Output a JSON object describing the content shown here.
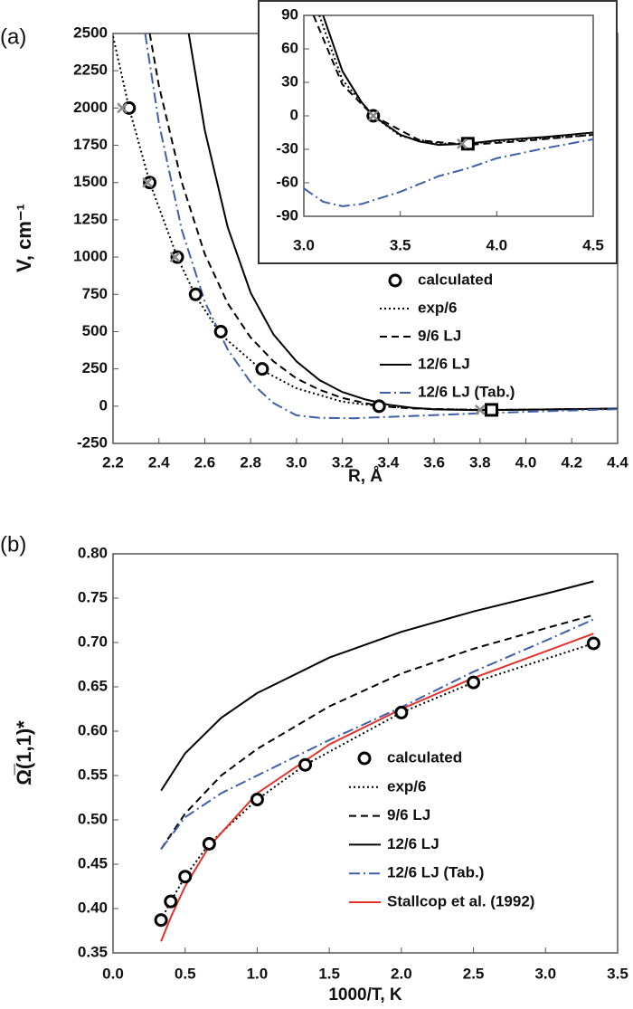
{
  "chart_data": [
    {
      "type": "line",
      "panel_label": "(a)",
      "xlabel": "R, Å",
      "ylabel": "V, cm⁻¹",
      "legend": "right",
      "xlim": [
        2.2,
        4.4
      ],
      "ylim": [
        -250,
        2500
      ],
      "xticks": [
        2.2,
        2.4,
        2.6,
        2.8,
        {
          "value": 3,
          "label": "3.0"
        },
        3.2,
        3.4,
        3.6,
        3.8,
        {
          "value": 4,
          "label": "4.0"
        },
        4.2,
        4.4
      ],
      "yticks": [
        -250,
        0,
        250,
        500,
        750,
        1000,
        1250,
        1500,
        1750,
        2000,
        2250,
        2500
      ],
      "series": [
        {
          "name": "calculated",
          "style": "markers",
          "marker": "circle",
          "color": "#000000",
          "x": [
            2.27,
            2.36,
            2.48,
            2.56,
            2.67,
            2.85,
            3.36
          ],
          "values": [
            2000,
            1500,
            1000,
            750,
            500,
            250,
            0
          ]
        },
        {
          "name": "exp/6",
          "style": "dotted",
          "color": "#000000",
          "x": [
            2.2,
            2.27,
            2.36,
            2.48,
            2.56,
            2.67,
            2.85,
            3.0,
            3.2,
            3.36,
            3.6,
            3.85,
            4.1,
            4.4
          ],
          "values": [
            2480,
            2000,
            1500,
            1000,
            740,
            480,
            240,
            120,
            30,
            0,
            -20,
            -25,
            -22,
            -17
          ]
        },
        {
          "name": "9/6 LJ",
          "style": "dashed",
          "color": "#000000",
          "x": [
            2.36,
            2.4,
            2.5,
            2.6,
            2.7,
            2.8,
            2.9,
            3.0,
            3.1,
            3.2,
            3.36,
            3.5,
            3.8,
            4.1,
            4.4
          ],
          "values": [
            2500,
            2150,
            1500,
            1020,
            690,
            460,
            300,
            185,
            110,
            55,
            0,
            -15,
            -26,
            -22,
            -17
          ]
        },
        {
          "name": "12/6 LJ",
          "style": "solid",
          "color": "#000000",
          "x": [
            2.53,
            2.6,
            2.7,
            2.8,
            2.9,
            3.0,
            3.1,
            3.2,
            3.3,
            3.4,
            3.5,
            3.6,
            3.8,
            4.0,
            4.2,
            4.4
          ],
          "values": [
            2500,
            1850,
            1200,
            760,
            480,
            300,
            175,
            95,
            45,
            10,
            -10,
            -22,
            -27,
            -24,
            -20,
            -16
          ]
        },
        {
          "name": "12/6 LJ (Tab.)",
          "style": "dashdot",
          "color": "#3f5fa8",
          "x": [
            2.34,
            2.4,
            2.5,
            2.6,
            2.7,
            2.8,
            2.9,
            3.0,
            3.1,
            3.25,
            3.4,
            3.6,
            3.8,
            4.0,
            4.4
          ],
          "values": [
            2500,
            1900,
            1180,
            700,
            380,
            160,
            20,
            -62,
            -78,
            -81,
            -72,
            -60,
            -48,
            -38,
            -20
          ]
        },
        {
          "style": "markers",
          "marker": "square",
          "color": "#000000",
          "x": [
            3.85
          ],
          "values": [
            -25
          ]
        },
        {
          "style": "markers",
          "marker": "cross",
          "color": "#888888",
          "x": [
            2.24,
            2.35,
            2.47,
            3.8
          ],
          "values": [
            2000,
            1500,
            1000,
            -25
          ]
        }
      ]
    },
    {
      "type": "line",
      "inset": true,
      "xlim": [
        3.0,
        4.5
      ],
      "ylim": [
        -90,
        90
      ],
      "xticks": [
        {
          "value": 3,
          "label": "3.0"
        },
        3.5,
        {
          "value": 4,
          "label": "4.0"
        },
        4.5
      ],
      "yticks": [
        -90,
        -60,
        -30,
        0,
        30,
        60,
        90
      ],
      "series": [
        {
          "style": "markers",
          "marker": "circle",
          "color": "#000000",
          "x": [
            3.36
          ],
          "values": [
            0
          ]
        },
        {
          "style": "dotted",
          "color": "#000000",
          "x": [
            3.08,
            3.2,
            3.36,
            3.5,
            3.7,
            3.85,
            4.1,
            4.5
          ],
          "values": [
            90,
            32,
            0,
            -18,
            -25,
            -25,
            -22,
            -17
          ]
        },
        {
          "style": "dashed",
          "color": "#000000",
          "x": [
            3.05,
            3.2,
            3.36,
            3.6,
            3.85,
            4.1,
            4.5
          ],
          "values": [
            90,
            28,
            0,
            -22,
            -26,
            -23,
            -17
          ]
        },
        {
          "style": "solid",
          "color": "#000000",
          "x": [
            3.1,
            3.2,
            3.3,
            3.36,
            3.5,
            3.6,
            3.7,
            3.85,
            4.0,
            4.25,
            4.5
          ],
          "values": [
            90,
            40,
            12,
            0,
            -17,
            -23,
            -26,
            -25,
            -22,
            -19,
            -15
          ]
        },
        {
          "style": "dashdot",
          "color": "#3f5fa8",
          "x": [
            3.0,
            3.1,
            3.2,
            3.3,
            3.5,
            3.7,
            3.85,
            4.0,
            4.25,
            4.5
          ],
          "values": [
            -65,
            -77,
            -81,
            -79,
            -68,
            -54,
            -47,
            -38,
            -29,
            -21
          ]
        },
        {
          "style": "markers",
          "marker": "square",
          "color": "#000000",
          "x": [
            3.85
          ],
          "values": [
            -25
          ]
        },
        {
          "style": "markers",
          "marker": "cross",
          "color": "#888888",
          "x": [
            3.36,
            3.82
          ],
          "values": [
            0,
            -25
          ]
        }
      ]
    },
    {
      "type": "line",
      "panel_label": "(b)",
      "xlabel": "1000/T, K",
      "ylabel": "Ω̅(1,1)*",
      "legend": "right",
      "xlim": [
        0,
        3.5
      ],
      "ylim": [
        0.35,
        0.8
      ],
      "xticks": [
        {
          "value": 0,
          "label": "0.0"
        },
        0.5,
        {
          "value": 1,
          "label": "1.0"
        },
        1.5,
        {
          "value": 2,
          "label": "2.0"
        },
        2.5,
        {
          "value": 3,
          "label": "3.0"
        },
        3.5
      ],
      "yticks": [
        0.35,
        {
          "value": 0.4,
          "label": "0.40"
        },
        0.45,
        {
          "value": 0.5,
          "label": "0.50"
        },
        0.55,
        {
          "value": 0.6,
          "label": "0.60"
        },
        0.65,
        {
          "value": 0.7,
          "label": "0.70"
        },
        0.75,
        {
          "value": 0.8,
          "label": "0.80"
        }
      ],
      "series": [
        {
          "name": "calculated",
          "style": "markers",
          "marker": "circle",
          "color": "#000000",
          "x": [
            0.333,
            0.4,
            0.5,
            0.667,
            1.0,
            1.333,
            2.0,
            2.5,
            3.333
          ],
          "values": [
            0.387,
            0.408,
            0.436,
            0.473,
            0.523,
            0.562,
            0.621,
            0.655,
            0.699
          ]
        },
        {
          "name": "exp/6",
          "style": "dotted",
          "color": "#000000",
          "x": [
            0.333,
            0.4,
            0.5,
            0.667,
            1.0,
            1.333,
            2.0,
            2.5,
            3.333
          ],
          "values": [
            0.387,
            0.408,
            0.436,
            0.473,
            0.523,
            0.562,
            0.621,
            0.655,
            0.699
          ]
        },
        {
          "name": "9/6 LJ",
          "style": "dashed",
          "color": "#000000",
          "x": [
            0.333,
            0.5,
            0.75,
            1.0,
            1.5,
            2.0,
            2.5,
            3.0,
            3.333
          ],
          "values": [
            0.467,
            0.507,
            0.55,
            0.58,
            0.628,
            0.665,
            0.693,
            0.716,
            0.731
          ]
        },
        {
          "name": "12/6 LJ",
          "style": "solid",
          "color": "#000000",
          "x": [
            0.333,
            0.5,
            0.75,
            1.0,
            1.5,
            2.0,
            2.5,
            3.0,
            3.333
          ],
          "values": [
            0.533,
            0.575,
            0.615,
            0.643,
            0.683,
            0.712,
            0.735,
            0.755,
            0.769
          ]
        },
        {
          "name": "12/6 LJ (Tab.)",
          "style": "dashdot",
          "color": "#3f5fa8",
          "x": [
            0.333,
            0.5,
            0.75,
            1.0,
            1.5,
            2.0,
            2.5,
            3.0,
            3.333
          ],
          "values": [
            0.467,
            0.503,
            0.53,
            0.55,
            0.59,
            0.627,
            0.667,
            0.702,
            0.726
          ]
        },
        {
          "name": "Stallcop et al. (1992)",
          "style": "solid",
          "color": "#e8312a",
          "x": [
            0.333,
            0.4,
            0.5,
            0.667,
            1.0,
            1.5,
            2.0,
            2.5,
            3.0,
            3.333
          ],
          "values": [
            0.363,
            0.39,
            0.425,
            0.47,
            0.53,
            0.585,
            0.625,
            0.66,
            0.69,
            0.71
          ]
        }
      ]
    }
  ]
}
